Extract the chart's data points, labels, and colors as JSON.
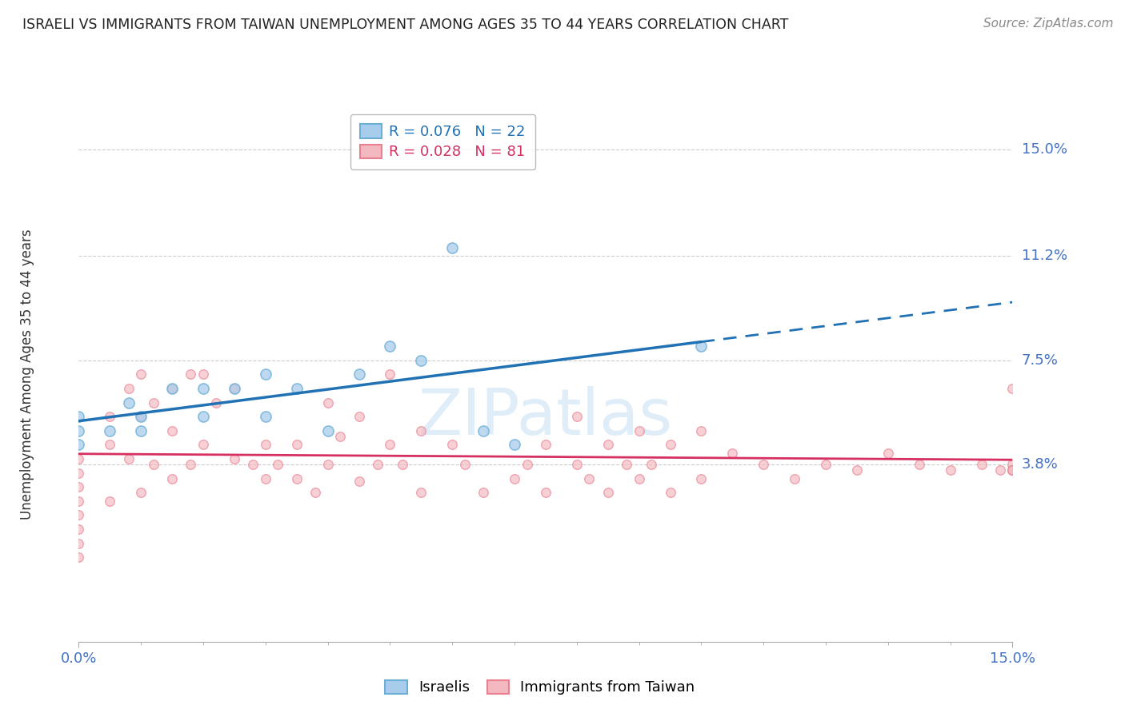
{
  "title": "ISRAELI VS IMMIGRANTS FROM TAIWAN UNEMPLOYMENT AMONG AGES 35 TO 44 YEARS CORRELATION CHART",
  "source": "Source: ZipAtlas.com",
  "ylabel": "Unemployment Among Ages 35 to 44 years",
  "xlim": [
    0.0,
    0.15
  ],
  "ylim": [
    -0.025,
    0.165
  ],
  "hline_values": [
    0.038,
    0.075,
    0.112,
    0.15
  ],
  "right_tick_labels": {
    "0.15": "15.0%",
    "0.112": "11.2%",
    "0.075": "7.5%",
    "0.038": "3.8%"
  },
  "legend1_label": "R = 0.076   N = 22",
  "legend2_label": "R = 0.028   N = 81",
  "watermark": "ZIPatlas",
  "israelis_x": [
    0.0,
    0.0,
    0.0,
    0.005,
    0.008,
    0.01,
    0.01,
    0.015,
    0.02,
    0.02,
    0.025,
    0.03,
    0.03,
    0.035,
    0.04,
    0.045,
    0.05,
    0.055,
    0.06,
    0.065,
    0.07,
    0.1
  ],
  "israelis_y": [
    0.045,
    0.05,
    0.055,
    0.05,
    0.06,
    0.05,
    0.055,
    0.065,
    0.055,
    0.065,
    0.065,
    0.055,
    0.07,
    0.065,
    0.05,
    0.07,
    0.08,
    0.075,
    0.115,
    0.05,
    0.045,
    0.08
  ],
  "taiwan_x": [
    0.0,
    0.0,
    0.0,
    0.0,
    0.0,
    0.0,
    0.0,
    0.0,
    0.005,
    0.005,
    0.005,
    0.008,
    0.008,
    0.01,
    0.01,
    0.01,
    0.012,
    0.012,
    0.015,
    0.015,
    0.015,
    0.018,
    0.018,
    0.02,
    0.02,
    0.022,
    0.025,
    0.025,
    0.028,
    0.03,
    0.03,
    0.032,
    0.035,
    0.035,
    0.038,
    0.04,
    0.04,
    0.042,
    0.045,
    0.045,
    0.048,
    0.05,
    0.05,
    0.052,
    0.055,
    0.055,
    0.06,
    0.062,
    0.065,
    0.07,
    0.072,
    0.075,
    0.075,
    0.08,
    0.08,
    0.082,
    0.085,
    0.085,
    0.088,
    0.09,
    0.09,
    0.092,
    0.095,
    0.095,
    0.1,
    0.1,
    0.105,
    0.11,
    0.115,
    0.12,
    0.125,
    0.13,
    0.135,
    0.14,
    0.145,
    0.148,
    0.15,
    0.15,
    0.15,
    0.15,
    0.15
  ],
  "taiwan_y": [
    0.04,
    0.035,
    0.03,
    0.025,
    0.02,
    0.015,
    0.01,
    0.005,
    0.055,
    0.045,
    0.025,
    0.065,
    0.04,
    0.07,
    0.055,
    0.028,
    0.06,
    0.038,
    0.065,
    0.05,
    0.033,
    0.07,
    0.038,
    0.07,
    0.045,
    0.06,
    0.065,
    0.04,
    0.038,
    0.045,
    0.033,
    0.038,
    0.045,
    0.033,
    0.028,
    0.06,
    0.038,
    0.048,
    0.055,
    0.032,
    0.038,
    0.07,
    0.045,
    0.038,
    0.05,
    0.028,
    0.045,
    0.038,
    0.028,
    0.033,
    0.038,
    0.045,
    0.028,
    0.055,
    0.038,
    0.033,
    0.045,
    0.028,
    0.038,
    0.05,
    0.033,
    0.038,
    0.045,
    0.028,
    0.05,
    0.033,
    0.042,
    0.038,
    0.033,
    0.038,
    0.036,
    0.042,
    0.038,
    0.036,
    0.038,
    0.036,
    0.065,
    0.038,
    0.036,
    0.036,
    0.036
  ]
}
